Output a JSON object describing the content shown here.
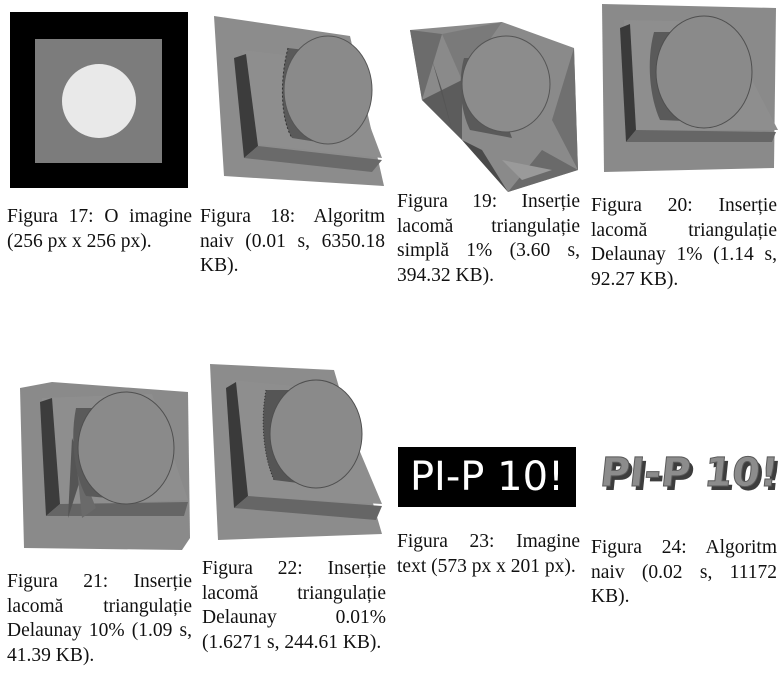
{
  "figures": [
    {
      "label": "Figura 17:",
      "text": "O imagine (256 px x 256 px)."
    },
    {
      "label": "Figura 18:",
      "text": "Algoritm naiv (0.01 s, 6350.18 KB)."
    },
    {
      "label": "Figura 19:",
      "text": "Inserție lacomă triangulație simplă 1% (3.60 s, 394.32 KB)."
    },
    {
      "label": "Figura 20:",
      "text": "Inserție lacomă triangulație Delaunay 1% (1.14 s, 92.27 KB)."
    },
    {
      "label": "Figura 21:",
      "text": "Inserție lacomă triangulație Delaunay 10% (1.09 s, 41.39 KB)."
    },
    {
      "label": "Figura 22:",
      "text": "Inserție lacomă triangulație Delaunay 0.01% (1.6271 s, 244.61 KB)."
    },
    {
      "label": "Figura 23:",
      "text": "Imagine text (573 px x 201 px)."
    },
    {
      "label": "Figura 24:",
      "text": "Algoritm naiv (0.02 s, 11172 KB)."
    }
  ],
  "images": {
    "text_image": "PI-P 10!",
    "text_render": "PI-P 10!"
  },
  "colors": {
    "surface": "#8a8a8a",
    "surface_dark": "#5e5e5e",
    "surface_darker": "#3e3e3e",
    "disk_light": "#e9e9e9",
    "black": "#000000"
  }
}
